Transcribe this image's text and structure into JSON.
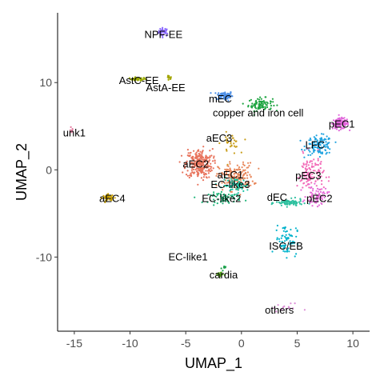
{
  "chart_data": {
    "type": "scatter",
    "xlabel": "UMAP_1",
    "ylabel": "UMAP_2",
    "xlim": [
      -16.5,
      11.5
    ],
    "ylim": [
      -18.5,
      18
    ],
    "x_ticks": [
      -15,
      -10,
      -5,
      0,
      5,
      10
    ],
    "y_ticks": [
      -10,
      0,
      10
    ],
    "grid": false,
    "legend": "none",
    "clusters": [
      {
        "name": "NPF-EE",
        "color": "#8C6BFF",
        "center": [
          -7.0,
          15.8
        ],
        "spread": [
          0.4,
          0.4
        ],
        "n": 40,
        "label_at": [
          -7.0,
          15.5
        ]
      },
      {
        "name": "AstC-EE",
        "color": "#9AAA00",
        "center": [
          -9.3,
          10.4
        ],
        "spread": [
          0.6,
          0.15
        ],
        "n": 40,
        "label_at": [
          -9.2,
          10.2
        ]
      },
      {
        "name": "AstA-EE",
        "color": "#A3A500",
        "center": [
          -6.5,
          10.5
        ],
        "spread": [
          0.2,
          0.25
        ],
        "n": 15,
        "label_at": [
          -6.8,
          9.4
        ]
      },
      {
        "name": "unk1",
        "color": "#E27A9E",
        "center": [
          -15.2,
          4.5
        ],
        "spread": [
          0.15,
          0.3
        ],
        "n": 6,
        "label_at": [
          -15.0,
          4.2
        ]
      },
      {
        "name": "mEC",
        "color": "#4D8FE6",
        "center": [
          -1.5,
          8.5
        ],
        "spread": [
          0.6,
          0.45
        ],
        "n": 80,
        "label_at": [
          -1.9,
          8.1
        ]
      },
      {
        "name": "copper and iron cell",
        "color": "#1FA542",
        "center": [
          1.7,
          7.5
        ],
        "spread": [
          0.9,
          0.6
        ],
        "n": 90,
        "label_at": [
          1.5,
          6.5
        ]
      },
      {
        "name": "pEC1",
        "color": "#E065DA",
        "center": [
          8.9,
          5.3
        ],
        "spread": [
          0.6,
          0.5
        ],
        "n": 130,
        "label_at": [
          9.0,
          5.2
        ]
      },
      {
        "name": "LFC",
        "color": "#1FA3E0",
        "center": [
          7.0,
          2.8
        ],
        "spread": [
          1.0,
          0.9
        ],
        "n": 120,
        "label_at": [
          6.6,
          2.8
        ]
      },
      {
        "name": "aEC3",
        "color": "#C99E1B",
        "center": [
          -1.0,
          3.0
        ],
        "spread": [
          0.7,
          1.0
        ],
        "n": 30,
        "label_at": [
          -2.0,
          3.6
        ]
      },
      {
        "name": "aEC2",
        "color": "#E8735C",
        "center": [
          -3.8,
          0.7
        ],
        "spread": [
          1.0,
          1.4
        ],
        "n": 260,
        "label_at": [
          -4.1,
          0.6
        ]
      },
      {
        "name": "aEC1",
        "color": "#E8885C",
        "center": [
          -0.5,
          -0.8
        ],
        "spread": [
          1.3,
          1.3
        ],
        "n": 170,
        "label_at": [
          -1.0,
          -0.6
        ]
      },
      {
        "name": "EC-like3",
        "color": "#19C2A0",
        "center": [
          -0.5,
          -1.8
        ],
        "spread": [
          1.0,
          0.7
        ],
        "n": 70,
        "label_at": [
          -1.0,
          -1.7
        ]
      },
      {
        "name": "EC-like2",
        "color": "#1FB57A",
        "center": [
          -1.5,
          -3.2
        ],
        "spread": [
          1.2,
          0.5
        ],
        "n": 60,
        "label_at": [
          -1.8,
          -3.3
        ]
      },
      {
        "name": "aEC4",
        "color": "#C9A000",
        "center": [
          -11.9,
          -3.2
        ],
        "spread": [
          0.45,
          0.3
        ],
        "n": 40,
        "label_at": [
          -11.6,
          -3.3
        ]
      },
      {
        "name": "pEC3",
        "color": "#F26CB8",
        "center": [
          6.2,
          -0.5
        ],
        "spread": [
          1.0,
          1.8
        ],
        "n": 120,
        "label_at": [
          6.0,
          -0.7
        ]
      },
      {
        "name": "dEC",
        "color": "#2DC09F",
        "center": [
          4.3,
          -3.8
        ],
        "spread": [
          1.0,
          0.35
        ],
        "n": 80,
        "label_at": [
          3.2,
          -3.2
        ]
      },
      {
        "name": "pEC2",
        "color": "#E56BD8",
        "center": [
          6.8,
          -3.0
        ],
        "spread": [
          0.8,
          0.9
        ],
        "n": 70,
        "label_at": [
          7.0,
          -3.3
        ]
      },
      {
        "name": "ISC/EB",
        "color": "#00B3CC",
        "center": [
          4.0,
          -8.0
        ],
        "spread": [
          0.8,
          1.5
        ],
        "n": 70,
        "label_at": [
          4.0,
          -8.8
        ]
      },
      {
        "name": "EC-like1",
        "color": "#1AA04A",
        "center": [
          -1.6,
          -11.3
        ],
        "spread": [
          0.15,
          0.25
        ],
        "n": 8,
        "label_at": [
          -4.8,
          -10.0
        ]
      },
      {
        "name": "cardia",
        "color": "#56A51C",
        "center": [
          -2.0,
          -12.0
        ],
        "spread": [
          0.3,
          0.3
        ],
        "n": 15,
        "label_at": [
          -1.6,
          -12.1
        ]
      },
      {
        "name": "others",
        "color": "#DC8AD6",
        "center": [
          4.0,
          -15.8
        ],
        "spread": [
          1.0,
          0.4
        ],
        "n": 14,
        "label_at": [
          3.4,
          -16.1
        ]
      }
    ]
  }
}
